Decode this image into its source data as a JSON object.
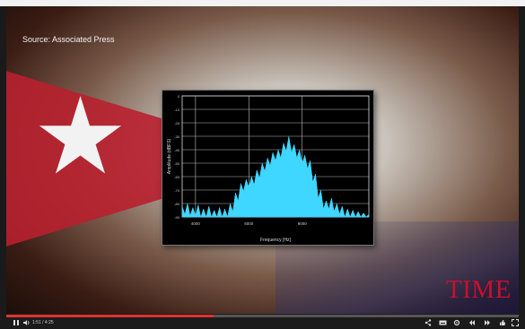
{
  "video": {
    "source_caption": "Source: Associated Press",
    "brand_logo": "TIME",
    "progress_fraction": 0.405
  },
  "player": {
    "time_display": "1:51 / 4:25",
    "icons": [
      "pause-icon",
      "volume-icon",
      "share-icon",
      "subtitles-icon",
      "settings-icon",
      "rewind-icon",
      "fast-forward-icon",
      "like-icon",
      "fullscreen-icon"
    ]
  },
  "chart_data": {
    "type": "area",
    "title": "",
    "xlabel": "Frequency [Hz]",
    "ylabel": "Amplitude (dBFS)",
    "x_ticks": [
      "4000",
      "6000",
      "8000"
    ],
    "y_ticks": [
      "0",
      "-10",
      "-20",
      "-30",
      "-40",
      "-50",
      "-60",
      "-70",
      "-80",
      "-90"
    ],
    "xlim": [
      3500,
      10500
    ],
    "ylim": [
      -90,
      0
    ],
    "grid": true,
    "series": [
      {
        "color": "#3fd6ff",
        "x": [
          3500,
          3700,
          3900,
          4100,
          4300,
          4500,
          4700,
          4900,
          5100,
          5300,
          5500,
          5700,
          5900,
          6100,
          6300,
          6500,
          6700,
          6900,
          7100,
          7300,
          7500,
          7700,
          7900,
          8100,
          8300,
          8500,
          8700,
          8900,
          9100,
          9300,
          9500,
          9700,
          9900,
          10100,
          10300,
          10500
        ],
        "values": [
          -82,
          -80,
          -83,
          -81,
          -84,
          -82,
          -85,
          -83,
          -84,
          -80,
          -72,
          -65,
          -62,
          -60,
          -55,
          -50,
          -46,
          -42,
          -40,
          -35,
          -30,
          -36,
          -40,
          -44,
          -48,
          -58,
          -70,
          -78,
          -76,
          -80,
          -82,
          -84,
          -85,
          -86,
          -87,
          -88
        ]
      }
    ]
  }
}
